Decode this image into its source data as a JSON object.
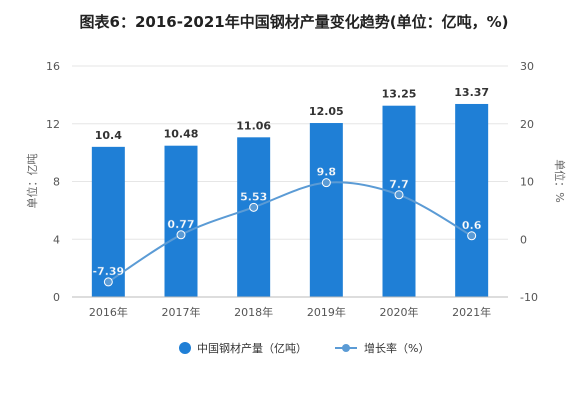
{
  "chart_data": {
    "type": "bar",
    "title": "图表6：2016-2021年中国钢材产量变化趋势(单位：亿吨，%)",
    "categories": [
      "2016年",
      "2017年",
      "2018年",
      "2019年",
      "2020年",
      "2021年"
    ],
    "series": [
      {
        "name": "中国钢材产量（亿吨）",
        "type": "bar",
        "axis": "left",
        "values": [
          10.4,
          10.48,
          11.06,
          12.05,
          13.25,
          13.37
        ],
        "color": "#1f7fd6"
      },
      {
        "name": "增长率（%）",
        "type": "line",
        "axis": "right",
        "values": [
          -7.39,
          0.77,
          5.53,
          9.8,
          7.7,
          0.6
        ],
        "color": "#5b9bd5"
      }
    ],
    "ylabel": "单位：亿吨",
    "y2label": "单位：%",
    "ylim": [
      0,
      16
    ],
    "yticks": [
      0,
      4,
      8,
      12,
      16
    ],
    "y2lim": [
      -10,
      30
    ],
    "y2ticks": [
      -10,
      0,
      10,
      20,
      30
    ],
    "grid": true,
    "legend_position": "bottom"
  }
}
